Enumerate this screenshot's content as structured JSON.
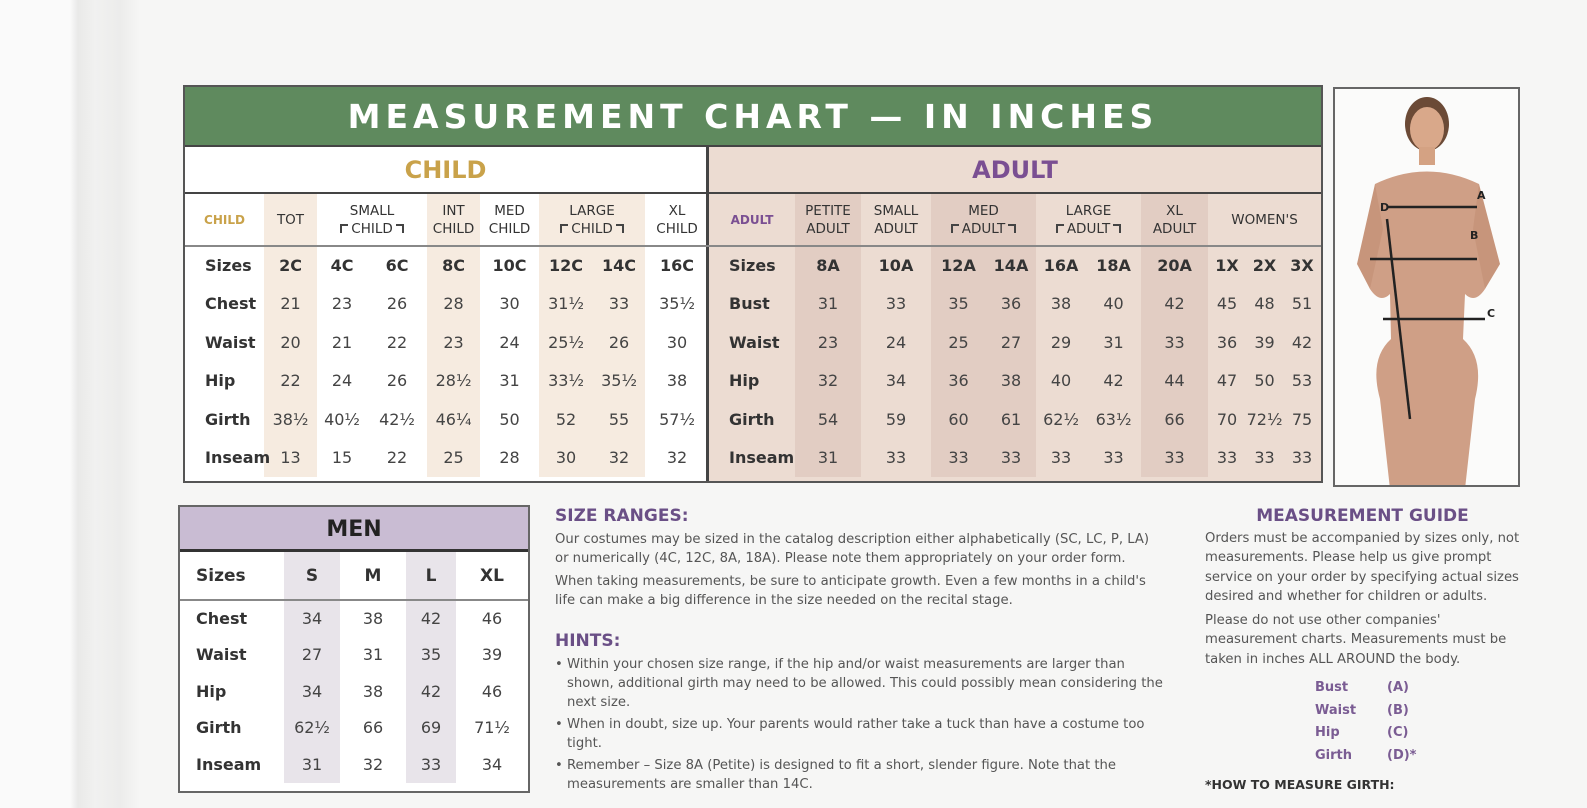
{
  "chart": {
    "title": "MEASUREMENT CHART — IN INCHES",
    "child": {
      "title": "CHILD",
      "group_label": "CHILD",
      "groups": [
        {
          "label": [
            "TOT"
          ]
        },
        {
          "label": [
            "SMALL",
            "CHILD"
          ]
        },
        {
          "label": [
            "INT",
            "CHILD"
          ]
        },
        {
          "label": [
            "MED",
            "CHILD"
          ]
        },
        {
          "label": [
            "LARGE",
            "CHILD"
          ]
        },
        {
          "label": [
            "XL",
            "CHILD"
          ]
        }
      ],
      "rows": [
        {
          "label": "Sizes",
          "values": [
            "2C",
            "4C",
            "6C",
            "8C",
            "10C",
            "12C",
            "14C",
            "16C"
          ]
        },
        {
          "label": "Chest",
          "values": [
            "21",
            "23",
            "26",
            "28",
            "30",
            "31½",
            "33",
            "35½"
          ]
        },
        {
          "label": "Waist",
          "values": [
            "20",
            "21",
            "22",
            "23",
            "24",
            "25½",
            "26",
            "30"
          ]
        },
        {
          "label": "Hip",
          "values": [
            "22",
            "24",
            "26",
            "28½",
            "31",
            "33½",
            "35½",
            "38"
          ]
        },
        {
          "label": "Girth",
          "values": [
            "38½",
            "40½",
            "42½",
            "46¼",
            "50",
            "52",
            "55",
            "57½"
          ]
        },
        {
          "label": "Inseam",
          "values": [
            "13",
            "15",
            "22",
            "25",
            "28",
            "30",
            "32",
            "32"
          ]
        }
      ]
    },
    "adult": {
      "title": "ADULT",
      "group_label": "ADULT",
      "groups": [
        {
          "label": [
            "PETITE",
            "ADULT"
          ]
        },
        {
          "label": [
            "SMALL",
            "ADULT"
          ]
        },
        {
          "label": [
            "MED",
            "ADULT"
          ]
        },
        {
          "label": [
            "LARGE",
            "ADULT"
          ]
        },
        {
          "label": [
            "XL",
            "ADULT"
          ]
        },
        {
          "label": [
            "WOMEN'S"
          ]
        }
      ],
      "rows": [
        {
          "label": "Sizes",
          "values": [
            "8A",
            "10A",
            "12A",
            "14A",
            "16A",
            "18A",
            "20A",
            "1X",
            "2X",
            "3X"
          ]
        },
        {
          "label": "Bust",
          "values": [
            "31",
            "33",
            "35",
            "36",
            "38",
            "40",
            "42",
            "45",
            "48",
            "51"
          ]
        },
        {
          "label": "Waist",
          "values": [
            "23",
            "24",
            "25",
            "27",
            "29",
            "31",
            "33",
            "36",
            "39",
            "42"
          ]
        },
        {
          "label": "Hip",
          "values": [
            "32",
            "34",
            "36",
            "38",
            "40",
            "42",
            "44",
            "47",
            "50",
            "53"
          ]
        },
        {
          "label": "Girth",
          "values": [
            "54",
            "59",
            "60",
            "61",
            "62½",
            "63½",
            "66",
            "70",
            "72½",
            "75"
          ]
        },
        {
          "label": "Inseam",
          "values": [
            "31",
            "33",
            "33",
            "33",
            "33",
            "33",
            "33",
            "33",
            "33",
            "33"
          ]
        }
      ]
    }
  },
  "diagram": {
    "labels": [
      "A",
      "B",
      "C",
      "D"
    ]
  },
  "men": {
    "title": "MEN",
    "header": [
      "Sizes",
      "S",
      "M",
      "L",
      "XL"
    ],
    "rows": [
      {
        "label": "Chest",
        "values": [
          "34",
          "38",
          "42",
          "46"
        ]
      },
      {
        "label": "Waist",
        "values": [
          "27",
          "31",
          "35",
          "39"
        ]
      },
      {
        "label": "Hip",
        "values": [
          "34",
          "38",
          "42",
          "46"
        ]
      },
      {
        "label": "Girth",
        "values": [
          "62½",
          "66",
          "69",
          "71½"
        ]
      },
      {
        "label": "Inseam",
        "values": [
          "31",
          "32",
          "33",
          "34"
        ]
      }
    ]
  },
  "size_ranges": {
    "heading": "SIZE RANGES:",
    "paragraphs": [
      "Our costumes may be sized in the catalog description either alphabetically (SC, LC, P, LA) or numerically (4C, 12C, 8A, 18A). Please note them appropriately on your order form.",
      "When taking measurements, be sure to anticipate growth. Even a few months in a child's life can make a big difference in the size needed on the recital stage."
    ]
  },
  "hints": {
    "heading": "HINTS:",
    "items": [
      "Within your chosen size range, if the hip and/or waist measurements are larger than shown, additional girth may need to be allowed. This could possibly mean considering the next size.",
      "When in doubt, size up. Your parents would rather take a tuck than have a costume too tight.",
      "Remember – Size 8A (Petite) is designed to fit a short, slender figure. Note that the measurements are smaller than 14C."
    ]
  },
  "guide": {
    "heading": "MEASUREMENT GUIDE",
    "paragraphs": [
      "Orders must be accompanied by sizes only, not measurements. Please help us give prompt service on your order by specifying actual sizes desired and whether for children or adults.",
      "Please do not use other companies' measurement charts. Measurements must be taken in inches ALL AROUND the body."
    ],
    "legend": [
      {
        "name": "Bust",
        "code": "(A)"
      },
      {
        "name": "Waist",
        "code": "(B)"
      },
      {
        "name": "Hip",
        "code": "(C)"
      },
      {
        "name": "Girth",
        "code": "(D)*"
      }
    ],
    "footnote": "*HOW TO MEASURE GIRTH:"
  },
  "colors": {
    "title_band": "#5f8a5e",
    "child_accent": "#c9a24a",
    "adult_accent": "#7a4f92",
    "men_band": "#c9bcd3",
    "heading": "#6a4f86"
  }
}
